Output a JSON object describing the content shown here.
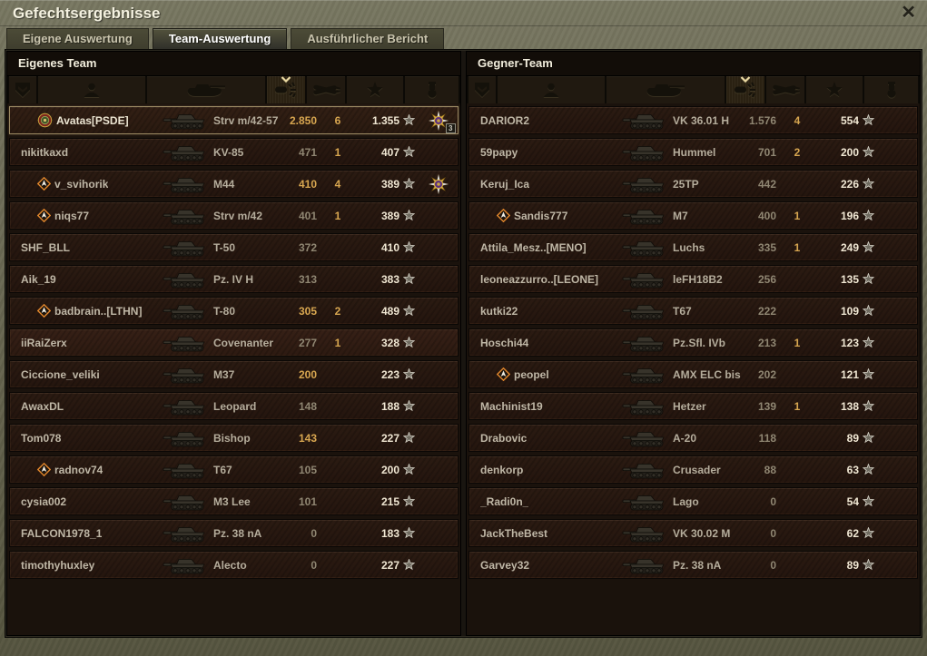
{
  "window": {
    "title": "Gefechtsergebnisse",
    "close_icon": "✕"
  },
  "tabs": [
    {
      "label": "Eigene Auswertung",
      "active": false
    },
    {
      "label": "Team-Auswertung",
      "active": true
    },
    {
      "label": "Ausführlicher Bericht",
      "active": false
    }
  ],
  "columns": [
    "rank-icon",
    "player-icon",
    "tank-icon",
    "damage-icon",
    "kills-icon",
    "xp-star-icon",
    "medal-icon"
  ],
  "sort": {
    "column": "damage",
    "direction": "desc"
  },
  "colors": {
    "gold": "#d7a650",
    "muted": "#8f8672",
    "xp": "#f0e7d3",
    "accent_chevron": "#ead9a2"
  },
  "teams": [
    {
      "title": "Eigenes Team",
      "rows": [
        {
          "name": "Avatas[PSDE]",
          "emblem": "round",
          "vehicle": "Strv m/42-57",
          "damage": "2.850",
          "damage_gold": true,
          "kills": "6",
          "xp": "1.355",
          "medal": true,
          "medal_count": "3",
          "self": true,
          "hover": false
        },
        {
          "name": "nikitkaxd",
          "emblem": "",
          "vehicle": "KV-85",
          "damage": "471",
          "damage_gold": false,
          "kills": "1",
          "xp": "407",
          "medal": false,
          "medal_count": "",
          "self": false,
          "hover": false
        },
        {
          "name": "v_svihorik",
          "emblem": "diamond",
          "vehicle": "M44",
          "damage": "410",
          "damage_gold": true,
          "kills": "4",
          "xp": "389",
          "medal": true,
          "medal_count": "",
          "self": false,
          "hover": false
        },
        {
          "name": "niqs77",
          "emblem": "diamond",
          "vehicle": "Strv m/42",
          "damage": "401",
          "damage_gold": false,
          "kills": "1",
          "xp": "389",
          "medal": false,
          "medal_count": "",
          "self": false,
          "hover": false
        },
        {
          "name": "SHF_BLL",
          "emblem": "",
          "vehicle": "T-50",
          "damage": "372",
          "damage_gold": false,
          "kills": "",
          "xp": "410",
          "medal": false,
          "medal_count": "",
          "self": false,
          "hover": false
        },
        {
          "name": "Aik_19",
          "emblem": "",
          "vehicle": "Pz. IV H",
          "damage": "313",
          "damage_gold": false,
          "kills": "",
          "xp": "383",
          "medal": false,
          "medal_count": "",
          "self": false,
          "hover": false
        },
        {
          "name": "badbrain..[LTHN]",
          "emblem": "diamond",
          "vehicle": "T-80",
          "damage": "305",
          "damage_gold": true,
          "kills": "2",
          "xp": "489",
          "medal": false,
          "medal_count": "",
          "self": false,
          "hover": false
        },
        {
          "name": "iiRaiZerx",
          "emblem": "",
          "vehicle": "Covenanter",
          "damage": "277",
          "damage_gold": false,
          "kills": "1",
          "xp": "328",
          "medal": false,
          "medal_count": "",
          "self": false,
          "hover": true
        },
        {
          "name": "Ciccione_veliki",
          "emblem": "",
          "vehicle": "M37",
          "damage": "200",
          "damage_gold": true,
          "kills": "",
          "xp": "223",
          "medal": false,
          "medal_count": "",
          "self": false,
          "hover": false
        },
        {
          "name": "AwaxDL",
          "emblem": "",
          "vehicle": "Leopard",
          "damage": "148",
          "damage_gold": false,
          "kills": "",
          "xp": "188",
          "medal": false,
          "medal_count": "",
          "self": false,
          "hover": false
        },
        {
          "name": "Tom078",
          "emblem": "",
          "vehicle": "Bishop",
          "damage": "143",
          "damage_gold": true,
          "kills": "",
          "xp": "227",
          "medal": false,
          "medal_count": "",
          "self": false,
          "hover": false
        },
        {
          "name": "radnov74",
          "emblem": "diamond",
          "vehicle": "T67",
          "damage": "105",
          "damage_gold": false,
          "kills": "",
          "xp": "200",
          "medal": false,
          "medal_count": "",
          "self": false,
          "hover": false
        },
        {
          "name": "cysia002",
          "emblem": "",
          "vehicle": "M3 Lee",
          "damage": "101",
          "damage_gold": false,
          "kills": "",
          "xp": "215",
          "medal": false,
          "medal_count": "",
          "self": false,
          "hover": false
        },
        {
          "name": "FALCON1978_1",
          "emblem": "",
          "vehicle": "Pz. 38 nA",
          "damage": "0",
          "damage_gold": false,
          "kills": "",
          "xp": "183",
          "medal": false,
          "medal_count": "",
          "self": false,
          "hover": false
        },
        {
          "name": "timothyhuxley",
          "emblem": "",
          "vehicle": "Alecto",
          "damage": "0",
          "damage_gold": false,
          "kills": "",
          "xp": "227",
          "medal": false,
          "medal_count": "",
          "self": false,
          "hover": false
        }
      ]
    },
    {
      "title": "Gegner-Team",
      "rows": [
        {
          "name": "DARIOR2",
          "emblem": "",
          "vehicle": "VK 36.01 H",
          "damage": "1.576",
          "damage_gold": false,
          "kills": "4",
          "xp": "554",
          "medal": false,
          "medal_count": "",
          "self": false,
          "hover": false
        },
        {
          "name": "59papy",
          "emblem": "",
          "vehicle": "Hummel",
          "damage": "701",
          "damage_gold": false,
          "kills": "2",
          "xp": "200",
          "medal": false,
          "medal_count": "",
          "self": false,
          "hover": false
        },
        {
          "name": "Keruj_Ica",
          "emblem": "",
          "vehicle": "25TP",
          "damage": "442",
          "damage_gold": false,
          "kills": "",
          "xp": "226",
          "medal": false,
          "medal_count": "",
          "self": false,
          "hover": false
        },
        {
          "name": "Sandis777",
          "emblem": "diamond",
          "vehicle": "M7",
          "damage": "400",
          "damage_gold": false,
          "kills": "1",
          "xp": "196",
          "medal": false,
          "medal_count": "",
          "self": false,
          "hover": false
        },
        {
          "name": "Attila_Mesz..[MENO]",
          "emblem": "",
          "vehicle": "Luchs",
          "damage": "335",
          "damage_gold": false,
          "kills": "1",
          "xp": "249",
          "medal": false,
          "medal_count": "",
          "self": false,
          "hover": false
        },
        {
          "name": "leoneazzurro..[LEONE]",
          "emblem": "",
          "vehicle": "leFH18B2",
          "damage": "256",
          "damage_gold": false,
          "kills": "",
          "xp": "135",
          "medal": false,
          "medal_count": "",
          "self": false,
          "hover": false
        },
        {
          "name": "kutki22",
          "emblem": "",
          "vehicle": "T67",
          "damage": "222",
          "damage_gold": false,
          "kills": "",
          "xp": "109",
          "medal": false,
          "medal_count": "",
          "self": false,
          "hover": false
        },
        {
          "name": "Hoschi44",
          "emblem": "",
          "vehicle": "Pz.Sfl. IVb",
          "damage": "213",
          "damage_gold": false,
          "kills": "1",
          "xp": "123",
          "medal": false,
          "medal_count": "",
          "self": false,
          "hover": false
        },
        {
          "name": "peopel",
          "emblem": "diamond",
          "vehicle": "AMX ELC bis",
          "damage": "202",
          "damage_gold": false,
          "kills": "",
          "xp": "121",
          "medal": false,
          "medal_count": "",
          "self": false,
          "hover": false
        },
        {
          "name": "Machinist19",
          "emblem": "",
          "vehicle": "Hetzer",
          "damage": "139",
          "damage_gold": false,
          "kills": "1",
          "xp": "138",
          "medal": false,
          "medal_count": "",
          "self": false,
          "hover": false
        },
        {
          "name": "Drabovic",
          "emblem": "",
          "vehicle": "A-20",
          "damage": "118",
          "damage_gold": false,
          "kills": "",
          "xp": "89",
          "medal": false,
          "medal_count": "",
          "self": false,
          "hover": false
        },
        {
          "name": "denkorp",
          "emblem": "",
          "vehicle": "Crusader",
          "damage": "88",
          "damage_gold": false,
          "kills": "",
          "xp": "63",
          "medal": false,
          "medal_count": "",
          "self": false,
          "hover": false
        },
        {
          "name": "_Radi0n_",
          "emblem": "",
          "vehicle": "Lago",
          "damage": "0",
          "damage_gold": false,
          "kills": "",
          "xp": "54",
          "medal": false,
          "medal_count": "",
          "self": false,
          "hover": false
        },
        {
          "name": "JackTheBest",
          "emblem": "",
          "vehicle": "VK 30.02 M",
          "damage": "0",
          "damage_gold": false,
          "kills": "",
          "xp": "62",
          "medal": false,
          "medal_count": "",
          "self": false,
          "hover": false
        },
        {
          "name": "Garvey32",
          "emblem": "",
          "vehicle": "Pz. 38 nA",
          "damage": "0",
          "damage_gold": false,
          "kills": "",
          "xp": "89",
          "medal": false,
          "medal_count": "",
          "self": false,
          "hover": false
        }
      ]
    }
  ]
}
